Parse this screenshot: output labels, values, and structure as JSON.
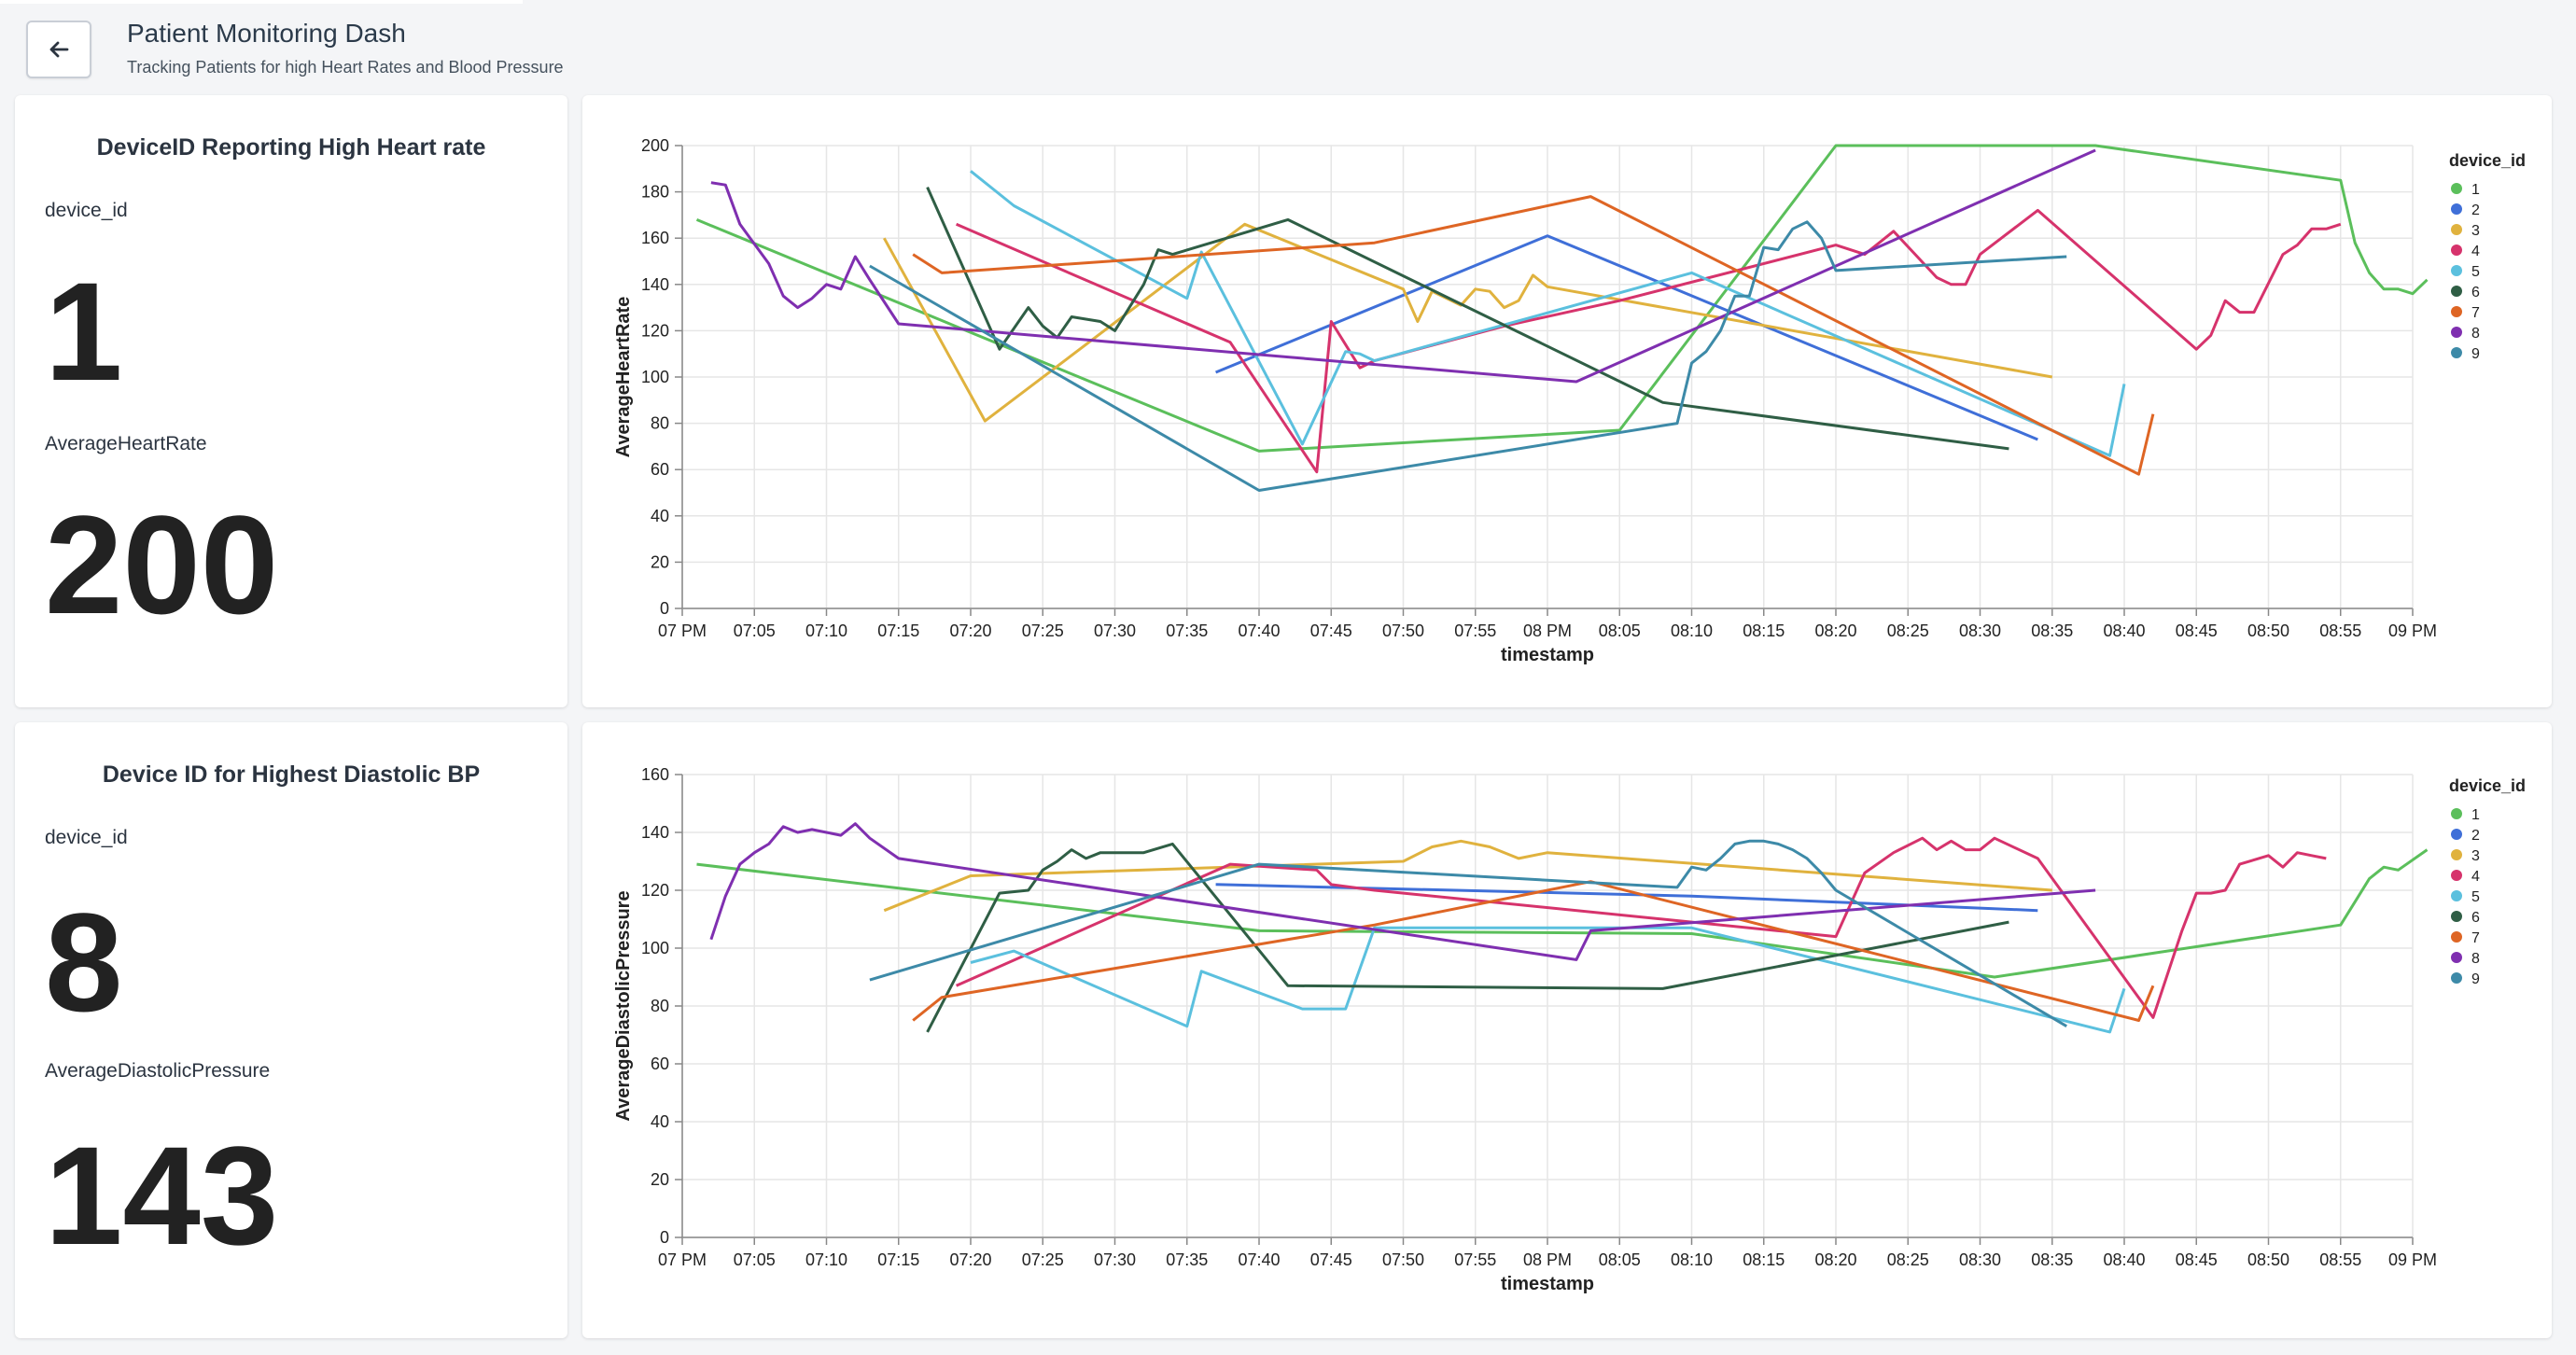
{
  "header": {
    "title": "Patient Monitoring Dash",
    "subtitle": "Tracking Patients for high Heart Rates and Blood Pressure"
  },
  "kpi_hr": {
    "title": "DeviceID  Reporting High Heart rate",
    "label1": "device_id",
    "value1": "1",
    "label2": "AverageHeartRate",
    "value2": "200"
  },
  "kpi_bp": {
    "title": "Device ID for Highest Diastolic BP",
    "label1": "device_id",
    "value1": "8",
    "label2": "AverageDiastolicPressure",
    "value2": "143"
  },
  "colors": {
    "1": "#5bbf5b",
    "2": "#3f6fd8",
    "3": "#e0b23e",
    "4": "#d6336c",
    "5": "#5bc0de",
    "6": "#2f5e45",
    "7": "#de6524",
    "8": "#7f2fb0",
    "9": "#3d8aa8"
  },
  "chart_data": [
    {
      "type": "line",
      "xlabel": "timestamp",
      "ylabel": "AverageHeartRate",
      "ylim": [
        0,
        200
      ],
      "yticks": [
        0,
        20,
        40,
        60,
        80,
        100,
        120,
        140,
        160,
        180,
        200
      ],
      "x_unit": "minutes after 07 PM",
      "xlim": [
        0,
        120
      ],
      "xticks": [
        "07 PM",
        "07:05",
        "07:10",
        "07:15",
        "07:20",
        "07:25",
        "07:30",
        "07:35",
        "07:40",
        "07:45",
        "07:50",
        "07:55",
        "08 PM",
        "08:05",
        "08:10",
        "08:15",
        "08:20",
        "08:25",
        "08:30",
        "08:35",
        "08:40",
        "08:45",
        "08:50",
        "08:55",
        "09 PM"
      ],
      "grid": true,
      "legend_title": "device_id",
      "legend_position": "right",
      "series": [
        {
          "name": "1",
          "points": [
            [
              1,
              168
            ],
            [
              40,
              68
            ],
            [
              65,
              77
            ],
            [
              80,
              200
            ],
            [
              98,
              200
            ],
            [
              115,
              185
            ],
            [
              116,
              158
            ],
            [
              117,
              145
            ],
            [
              118,
              138
            ],
            [
              119,
              138
            ],
            [
              120,
              136
            ],
            [
              121,
              142
            ]
          ]
        },
        {
          "name": "2",
          "points": [
            [
              37,
              102
            ],
            [
              60,
              161
            ],
            [
              94,
              73
            ]
          ]
        },
        {
          "name": "3",
          "points": [
            [
              14,
              160
            ],
            [
              21,
              81
            ],
            [
              39,
              166
            ],
            [
              50,
              138
            ],
            [
              51,
              124
            ],
            [
              52,
              137
            ],
            [
              54,
              131
            ],
            [
              55,
              138
            ],
            [
              56,
              137
            ],
            [
              57,
              130
            ],
            [
              58,
              133
            ],
            [
              59,
              144
            ],
            [
              60,
              139
            ],
            [
              95,
              100
            ]
          ]
        },
        {
          "name": "4",
          "points": [
            [
              19,
              166
            ],
            [
              38,
              115
            ],
            [
              44,
              59
            ],
            [
              45,
              124
            ],
            [
              47,
              104
            ],
            [
              48,
              107
            ],
            [
              57,
              122
            ],
            [
              65,
              133
            ],
            [
              80,
              157
            ],
            [
              82,
              153
            ],
            [
              84,
              163
            ],
            [
              87,
              143
            ],
            [
              88,
              140
            ],
            [
              89,
              140
            ],
            [
              90,
              153
            ],
            [
              94,
              172
            ],
            [
              105,
              112
            ],
            [
              106,
              118
            ],
            [
              107,
              133
            ],
            [
              108,
              128
            ],
            [
              109,
              128
            ],
            [
              111,
              153
            ],
            [
              112,
              157
            ],
            [
              113,
              164
            ],
            [
              114,
              164
            ],
            [
              115,
              166
            ]
          ]
        },
        {
          "name": "5",
          "points": [
            [
              20,
              189
            ],
            [
              23,
              174
            ],
            [
              35,
              134
            ],
            [
              36,
              154
            ],
            [
              43,
              71
            ],
            [
              46,
              111
            ],
            [
              47,
              110
            ],
            [
              48,
              107
            ],
            [
              70,
              145
            ],
            [
              99,
              66
            ],
            [
              100,
              97
            ]
          ]
        },
        {
          "name": "6",
          "points": [
            [
              17,
              182
            ],
            [
              22,
              112
            ],
            [
              24,
              130
            ],
            [
              25,
              122
            ],
            [
              26,
              117
            ],
            [
              27,
              126
            ],
            [
              29,
              124
            ],
            [
              30,
              120
            ],
            [
              32,
              140
            ],
            [
              33,
              155
            ],
            [
              34,
              153
            ],
            [
              42,
              168
            ],
            [
              68,
              89
            ],
            [
              92,
              69
            ]
          ]
        },
        {
          "name": "7",
          "points": [
            [
              16,
              153
            ],
            [
              18,
              145
            ],
            [
              48,
              158
            ],
            [
              63,
              178
            ],
            [
              101,
              58
            ],
            [
              102,
              84
            ]
          ]
        },
        {
          "name": "8",
          "points": [
            [
              2,
              184
            ],
            [
              3,
              183
            ],
            [
              4,
              166
            ],
            [
              6,
              149
            ],
            [
              7,
              135
            ],
            [
              8,
              130
            ],
            [
              9,
              134
            ],
            [
              10,
              140
            ],
            [
              11,
              138
            ],
            [
              12,
              152
            ],
            [
              13,
              142
            ],
            [
              15,
              123
            ],
            [
              62,
              98
            ],
            [
              98,
              198
            ]
          ]
        },
        {
          "name": "9",
          "points": [
            [
              13,
              148
            ],
            [
              40,
              51
            ],
            [
              69,
              80
            ],
            [
              70,
              106
            ],
            [
              71,
              111
            ],
            [
              72,
              120
            ],
            [
              73,
              135
            ],
            [
              74,
              135
            ],
            [
              75,
              156
            ],
            [
              76,
              155
            ],
            [
              77,
              164
            ],
            [
              78,
              167
            ],
            [
              79,
              160
            ],
            [
              80,
              146
            ],
            [
              96,
              152
            ]
          ]
        }
      ]
    },
    {
      "type": "line",
      "xlabel": "timestamp",
      "ylabel": "AverageDiastolicPressure",
      "ylim": [
        0,
        160
      ],
      "yticks": [
        0,
        20,
        40,
        60,
        80,
        100,
        120,
        140,
        160
      ],
      "x_unit": "minutes after 07 PM",
      "xlim": [
        0,
        120
      ],
      "xticks": [
        "07 PM",
        "07:05",
        "07:10",
        "07:15",
        "07:20",
        "07:25",
        "07:30",
        "07:35",
        "07:40",
        "07:45",
        "07:50",
        "07:55",
        "08 PM",
        "08:05",
        "08:10",
        "08:15",
        "08:20",
        "08:25",
        "08:30",
        "08:35",
        "08:40",
        "08:45",
        "08:50",
        "08:55",
        "09 PM"
      ],
      "grid": true,
      "legend_title": "device_id",
      "legend_position": "right",
      "series": [
        {
          "name": "1",
          "points": [
            [
              1,
              129
            ],
            [
              40,
              106
            ],
            [
              70,
              105
            ],
            [
              91,
              90
            ],
            [
              115,
              108
            ],
            [
              116,
              116
            ],
            [
              117,
              124
            ],
            [
              118,
              128
            ],
            [
              119,
              127
            ],
            [
              121,
              134
            ]
          ]
        },
        {
          "name": "2",
          "points": [
            [
              37,
              122
            ],
            [
              70,
              118
            ],
            [
              94,
              113
            ]
          ]
        },
        {
          "name": "3",
          "points": [
            [
              14,
              113
            ],
            [
              20,
              125
            ],
            [
              50,
              130
            ],
            [
              52,
              135
            ],
            [
              54,
              137
            ],
            [
              56,
              135
            ],
            [
              58,
              131
            ],
            [
              60,
              133
            ],
            [
              95,
              120
            ]
          ]
        },
        {
          "name": "4",
          "points": [
            [
              19,
              87
            ],
            [
              38,
              129
            ],
            [
              44,
              127
            ],
            [
              45,
              122
            ],
            [
              48,
              120
            ],
            [
              80,
              104
            ],
            [
              82,
              126
            ],
            [
              84,
              133
            ],
            [
              86,
              138
            ],
            [
              87,
              134
            ],
            [
              88,
              137
            ],
            [
              89,
              134
            ],
            [
              90,
              134
            ],
            [
              91,
              138
            ],
            [
              94,
              131
            ],
            [
              102,
              76
            ],
            [
              104,
              106
            ],
            [
              105,
              119
            ],
            [
              106,
              119
            ],
            [
              107,
              120
            ],
            [
              108,
              129
            ],
            [
              110,
              132
            ],
            [
              111,
              128
            ],
            [
              112,
              133
            ],
            [
              113,
              132
            ],
            [
              114,
              131
            ]
          ]
        },
        {
          "name": "5",
          "points": [
            [
              20,
              95
            ],
            [
              23,
              99
            ],
            [
              35,
              73
            ],
            [
              36,
              92
            ],
            [
              43,
              79
            ],
            [
              46,
              79
            ],
            [
              48,
              107
            ],
            [
              70,
              107
            ],
            [
              99,
              71
            ],
            [
              100,
              86
            ]
          ]
        },
        {
          "name": "6",
          "points": [
            [
              17,
              71
            ],
            [
              22,
              119
            ],
            [
              24,
              120
            ],
            [
              25,
              127
            ],
            [
              26,
              130
            ],
            [
              27,
              134
            ],
            [
              28,
              131
            ],
            [
              29,
              133
            ],
            [
              30,
              133
            ],
            [
              32,
              133
            ],
            [
              34,
              136
            ],
            [
              42,
              87
            ],
            [
              68,
              86
            ],
            [
              92,
              109
            ]
          ]
        },
        {
          "name": "7",
          "points": [
            [
              16,
              75
            ],
            [
              18,
              83
            ],
            [
              48,
              108
            ],
            [
              63,
              123
            ],
            [
              101,
              75
            ],
            [
              102,
              87
            ]
          ]
        },
        {
          "name": "8",
          "points": [
            [
              2,
              103
            ],
            [
              3,
              118
            ],
            [
              4,
              129
            ],
            [
              5,
              133
            ],
            [
              6,
              136
            ],
            [
              7,
              142
            ],
            [
              8,
              140
            ],
            [
              9,
              141
            ],
            [
              10,
              140
            ],
            [
              11,
              139
            ],
            [
              12,
              143
            ],
            [
              13,
              138
            ],
            [
              15,
              131
            ],
            [
              62,
              96
            ],
            [
              63,
              106
            ],
            [
              98,
              120
            ]
          ]
        },
        {
          "name": "9",
          "points": [
            [
              13,
              89
            ],
            [
              40,
              129
            ],
            [
              69,
              121
            ],
            [
              70,
              128
            ],
            [
              71,
              127
            ],
            [
              72,
              131
            ],
            [
              73,
              136
            ],
            [
              74,
              137
            ],
            [
              75,
              137
            ],
            [
              76,
              136
            ],
            [
              77,
              134
            ],
            [
              78,
              131
            ],
            [
              79,
              126
            ],
            [
              80,
              120
            ],
            [
              96,
              73
            ]
          ]
        }
      ]
    }
  ]
}
